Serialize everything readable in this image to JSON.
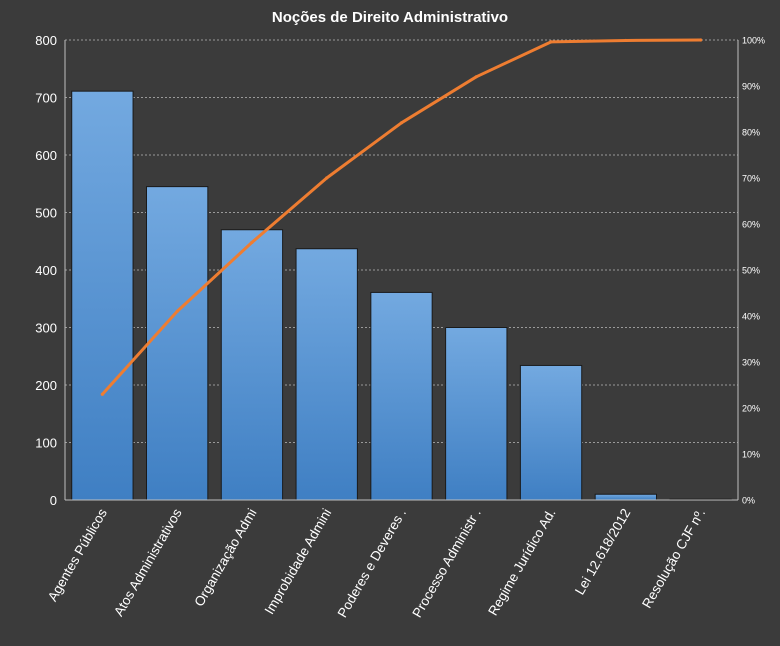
{
  "chart_data": {
    "type": "bar",
    "title": "Noções de Direito  Administrativo",
    "categories": [
      "Agentes Públicos",
      "Atos Administrativos",
      "Organização Admi",
      "Improbidade  Admini",
      "Poderes e Deveres .",
      "Processo Administr .",
      "Regime Jurídico Ad.",
      "Lei 12.618/2012",
      "Resolução CJF nº."
    ],
    "values": [
      711,
      545,
      470,
      437,
      361,
      300,
      234,
      10,
      1
    ],
    "cumulative_percent": [
      23,
      41,
      56,
      70,
      82,
      92,
      99.6,
      99.9,
      100
    ],
    "ylim": [
      0,
      800
    ],
    "y_ticks": [
      0,
      100,
      200,
      300,
      400,
      500,
      600,
      700,
      800
    ],
    "y2lim": [
      0,
      100
    ],
    "y2_ticks": [
      "0%",
      "10%",
      "20%",
      "30%",
      "40%",
      "50%",
      "60%",
      "70%",
      "80%",
      "90%",
      "100%"
    ],
    "grid": true,
    "legend": "none",
    "colors": {
      "background": "#3b3b3b",
      "bar_top": "#73a9e0",
      "bar_bottom": "#3f7fc3",
      "bar_stroke": "#1a1a1a",
      "line": "#ee7d31",
      "grid": "#9a9a9a",
      "text": "#ffffff"
    }
  }
}
